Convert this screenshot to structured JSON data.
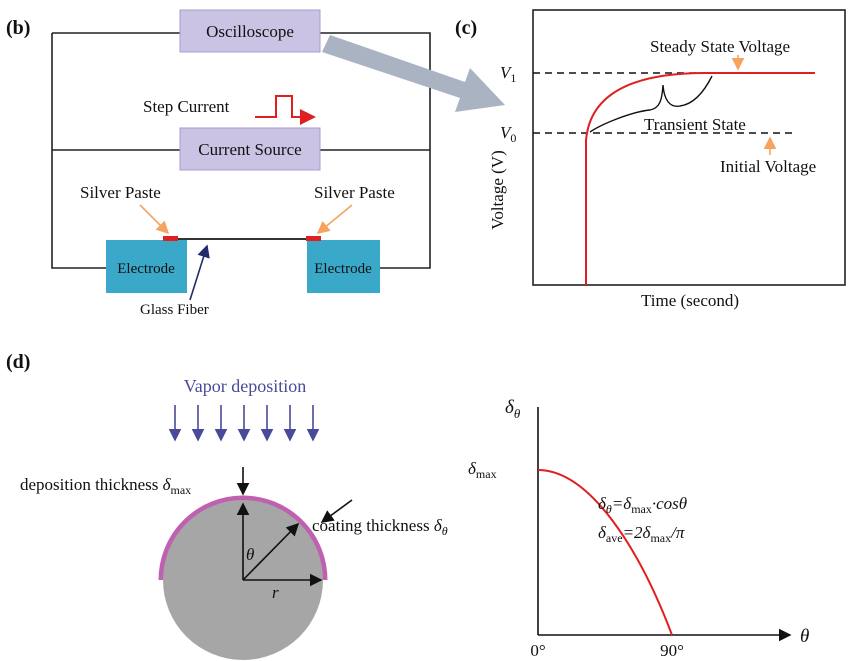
{
  "panel_b": {
    "label": "(b)",
    "oscilloscope": "Oscilloscope",
    "step_current": "Step Current",
    "current_source": "Current Source",
    "silver_paste_left": "Silver Paste",
    "silver_paste_right": "Silver Paste",
    "electrode_left": "Electrode",
    "electrode_right": "Electrode",
    "glass_fiber": "Glass Fiber"
  },
  "panel_c": {
    "label": "(c)",
    "v1": {
      "symbol": "V",
      "sub": "1"
    },
    "v0": {
      "symbol": "V",
      "sub": "0"
    },
    "steady_state": "Steady State Voltage",
    "transient": "Transient State",
    "initial": "Initial Voltage",
    "y_axis_label": "Voltage (V)",
    "x_axis_label": "Time (second)"
  },
  "panel_d": {
    "label": "(d)",
    "vapor": "Vapor deposition",
    "deposition_thickness": {
      "text": "deposition thickness",
      "symbol": "δ",
      "sub": "max"
    },
    "coating_thickness": {
      "text": "coating thickness",
      "symbol": "δ",
      "sub": "θ"
    },
    "theta": "θ",
    "r": "r",
    "y_axis": {
      "symbol": "δ",
      "sub": "θ"
    },
    "y_mark": {
      "symbol": "δ",
      "sub": "max"
    },
    "equation1": [
      "δ",
      "θ",
      "=δ",
      "max",
      "·cosθ"
    ],
    "equation2": [
      "δ",
      "ave",
      "=2δ",
      "max",
      "/π"
    ],
    "x_ticks": [
      "0°",
      "90°"
    ],
    "x_axis": "θ"
  }
}
